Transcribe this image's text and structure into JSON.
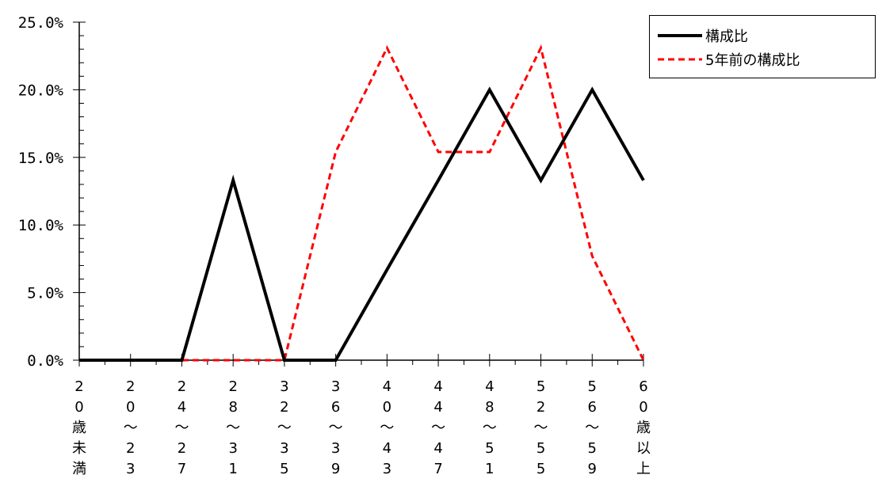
{
  "chart_data": {
    "type": "line",
    "categories": [
      [
        "2",
        "0",
        "歳",
        "未",
        "満"
      ],
      [
        "2",
        "0",
        "〜",
        "2",
        "3"
      ],
      [
        "2",
        "4",
        "〜",
        "2",
        "7"
      ],
      [
        "2",
        "8",
        "〜",
        "3",
        "1"
      ],
      [
        "3",
        "2",
        "〜",
        "3",
        "5"
      ],
      [
        "3",
        "6",
        "〜",
        "3",
        "9"
      ],
      [
        "4",
        "0",
        "〜",
        "4",
        "3"
      ],
      [
        "4",
        "4",
        "〜",
        "4",
        "7"
      ],
      [
        "4",
        "8",
        "〜",
        "5",
        "1"
      ],
      [
        "5",
        "2",
        "〜",
        "5",
        "5"
      ],
      [
        "5",
        "6",
        "〜",
        "5",
        "9"
      ],
      [
        "6",
        "0",
        "歳",
        "以",
        "上"
      ]
    ],
    "series": [
      {
        "name": "構成比",
        "color": "#000000",
        "dash": "solid",
        "values": [
          0.0,
          0.0,
          0.0,
          13.3,
          0.0,
          0.0,
          6.7,
          13.3,
          20.0,
          13.3,
          20.0,
          13.3
        ]
      },
      {
        "name": "5年前の構成比",
        "color": "#ff0000",
        "dash": "dashed",
        "values": [
          0.0,
          0.0,
          0.0,
          0.0,
          0.0,
          15.4,
          23.1,
          15.4,
          15.4,
          23.1,
          7.7,
          0.0
        ]
      }
    ],
    "yticks": [
      "0.0%",
      "5.0%",
      "10.0%",
      "15.0%",
      "20.0%",
      "25.0%"
    ],
    "ylim": [
      0,
      25
    ],
    "legend_position": "top-right"
  }
}
